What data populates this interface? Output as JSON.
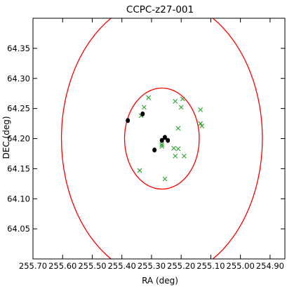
{
  "chart_data": {
    "type": "scatter",
    "title": "CCPC-z27-001",
    "xlabel": "RA (deg)",
    "ylabel": "DEC (deg)",
    "xlim": [
      255.7,
      254.85
    ],
    "ylim": [
      64.0,
      64.4
    ],
    "x_inverted": true,
    "xticks": [
      255.7,
      255.6,
      255.5,
      255.4,
      255.3,
      255.2,
      255.1,
      255.0,
      254.9
    ],
    "xtick_labels": [
      "255.70",
      "255.60",
      "255.50",
      "255.40",
      "255.30",
      "255.20",
      "255.10",
      "255.00",
      "254.90"
    ],
    "yticks": [
      64.05,
      64.1,
      64.15,
      64.2,
      64.25,
      64.3,
      64.35
    ],
    "ytick_labels": [
      "64.05",
      "64.10",
      "64.15",
      "64.20",
      "64.25",
      "64.30",
      "64.35"
    ],
    "grid": false,
    "colors": {
      "circle": "#ff0000",
      "cross": "#2ca02c",
      "dot": "#000000"
    },
    "circles": [
      {
        "center": [
          255.265,
          64.2
        ],
        "rx": 0.126,
        "ry": 0.084
      },
      {
        "center": [
          255.265,
          64.2
        ],
        "rx": 0.339,
        "ry": 0.232
      }
    ],
    "series": [
      {
        "marker": "x",
        "points": [
          [
            255.31,
            64.268
          ],
          [
            255.335,
            64.238
          ],
          [
            255.325,
            64.252
          ],
          [
            255.22,
            64.262
          ],
          [
            255.195,
            64.266
          ],
          [
            255.2,
            64.252
          ],
          [
            255.135,
            64.248
          ],
          [
            255.21,
            64.217
          ],
          [
            255.135,
            64.225
          ],
          [
            255.13,
            64.221
          ],
          [
            255.265,
            64.187
          ],
          [
            255.265,
            64.19
          ],
          [
            255.225,
            64.184
          ],
          [
            255.21,
            64.183
          ],
          [
            255.22,
            64.171
          ],
          [
            255.19,
            64.171
          ],
          [
            255.34,
            64.147
          ],
          [
            255.255,
            64.133
          ]
        ]
      },
      {
        "marker": "o",
        "points": [
          [
            255.38,
            64.23
          ],
          [
            255.33,
            64.241
          ],
          [
            255.265,
            64.197
          ],
          [
            255.255,
            64.202
          ],
          [
            255.245,
            64.197
          ],
          [
            255.29,
            64.181
          ]
        ]
      }
    ]
  }
}
